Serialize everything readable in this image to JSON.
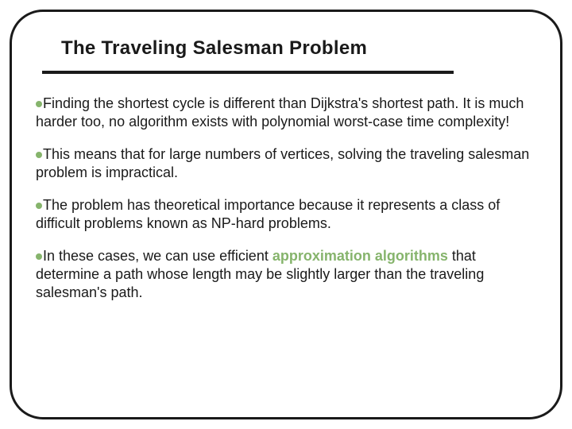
{
  "slide": {
    "title": "The Traveling Salesman Problem",
    "title_fontsize": 24,
    "title_color": "#1a1a1a",
    "frame_border_color": "#1a1a1a",
    "frame_border_width": 3,
    "frame_border_radius": 42,
    "rule_color": "#1a1a1a",
    "rule_height": 4,
    "background_color": "#ffffff",
    "body_fontsize": 18,
    "body_color": "#1a1a1a",
    "bullet_color": "#86b46c",
    "bullet_diameter": 8,
    "highlight_color": "#86b46c",
    "bullets": [
      {
        "text": "Finding the shortest cycle is different than Dijkstra's shortest path. It is much harder too, no algorithm exists with polynomial worst-case time complexity!"
      },
      {
        "text": "This means that for large numbers of vertices, solving the traveling salesman problem is impractical."
      },
      {
        "text": "The problem has theoretical importance because it represents a class of difficult problems known as NP-hard problems."
      },
      {
        "pre": "In these cases, we can use efficient ",
        "highlight": "approximation algorithms",
        "post": " that determine a path whose length may be slightly larger than the traveling salesman's path."
      }
    ]
  }
}
